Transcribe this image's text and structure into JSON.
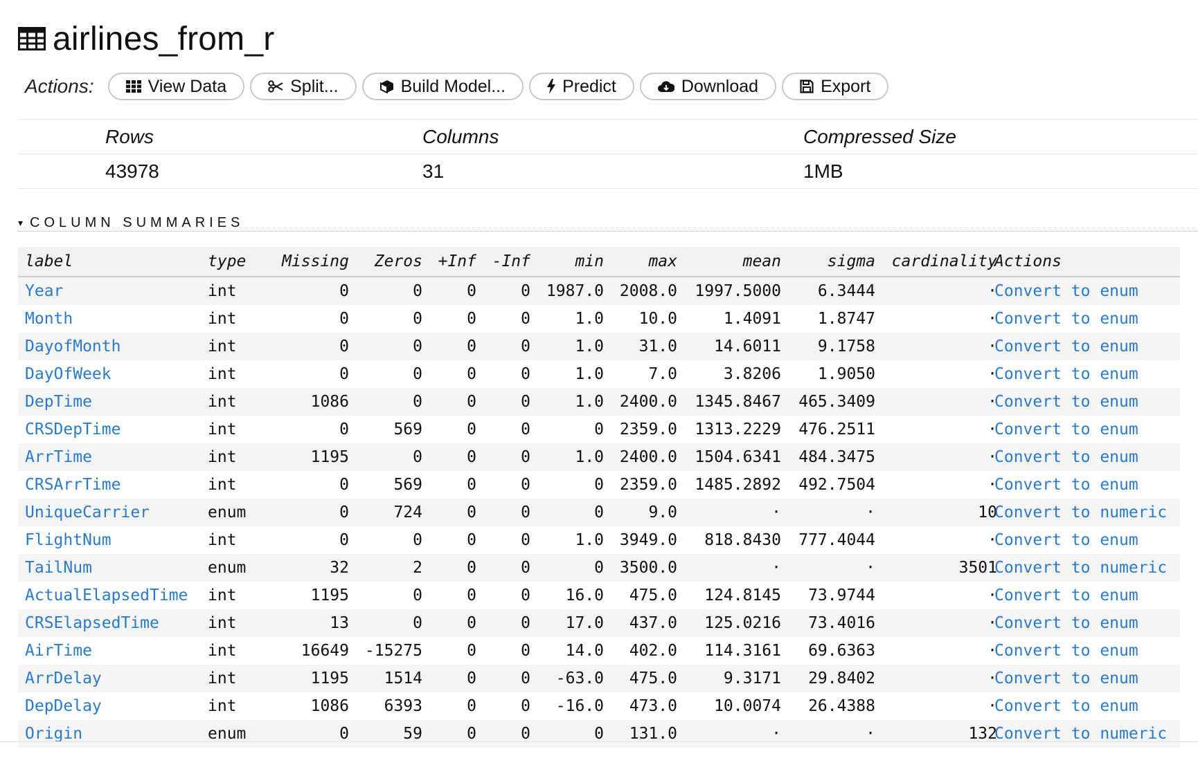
{
  "frame": {
    "name": "airlines_from_r",
    "icon": "table-icon"
  },
  "actions": {
    "label": "Actions:",
    "buttons": [
      {
        "label": "View Data",
        "icon": "grid-icon"
      },
      {
        "label": "Split...",
        "icon": "scissors-icon"
      },
      {
        "label": "Build Model...",
        "icon": "cube-icon"
      },
      {
        "label": "Predict",
        "icon": "bolt-icon"
      },
      {
        "label": "Download",
        "icon": "cloud-download-icon"
      },
      {
        "label": "Export",
        "icon": "save-icon"
      }
    ]
  },
  "summary": {
    "headers": {
      "rows": "Rows",
      "columns": "Columns",
      "size": "Compressed Size"
    },
    "values": {
      "rows": "43978",
      "columns": "31",
      "size": "1MB"
    }
  },
  "section": {
    "title": "COLUMN SUMMARIES",
    "caret": "▾"
  },
  "columns": {
    "label": "label",
    "type": "type",
    "missing": "Missing",
    "zeros": "Zeros",
    "pinf": "+Inf",
    "ninf": "-Inf",
    "min": "min",
    "max": "max",
    "mean": "mean",
    "sigma": "sigma",
    "cardinality": "cardinality",
    "actions": "Actions"
  },
  "rows": [
    {
      "label": "Year",
      "type": "int",
      "missing": "0",
      "zeros": "0",
      "pinf": "0",
      "ninf": "0",
      "min": "1987.0",
      "max": "2008.0",
      "mean": "1997.5000",
      "sigma": "6.3444",
      "cardinality": "·",
      "action": "Convert to enum"
    },
    {
      "label": "Month",
      "type": "int",
      "missing": "0",
      "zeros": "0",
      "pinf": "0",
      "ninf": "0",
      "min": "1.0",
      "max": "10.0",
      "mean": "1.4091",
      "sigma": "1.8747",
      "cardinality": "·",
      "action": "Convert to enum"
    },
    {
      "label": "DayofMonth",
      "type": "int",
      "missing": "0",
      "zeros": "0",
      "pinf": "0",
      "ninf": "0",
      "min": "1.0",
      "max": "31.0",
      "mean": "14.6011",
      "sigma": "9.1758",
      "cardinality": "·",
      "action": "Convert to enum"
    },
    {
      "label": "DayOfWeek",
      "type": "int",
      "missing": "0",
      "zeros": "0",
      "pinf": "0",
      "ninf": "0",
      "min": "1.0",
      "max": "7.0",
      "mean": "3.8206",
      "sigma": "1.9050",
      "cardinality": "·",
      "action": "Convert to enum"
    },
    {
      "label": "DepTime",
      "type": "int",
      "missing": "1086",
      "zeros": "0",
      "pinf": "0",
      "ninf": "0",
      "min": "1.0",
      "max": "2400.0",
      "mean": "1345.8467",
      "sigma": "465.3409",
      "cardinality": "·",
      "action": "Convert to enum"
    },
    {
      "label": "CRSDepTime",
      "type": "int",
      "missing": "0",
      "zeros": "569",
      "pinf": "0",
      "ninf": "0",
      "min": "0",
      "max": "2359.0",
      "mean": "1313.2229",
      "sigma": "476.2511",
      "cardinality": "·",
      "action": "Convert to enum"
    },
    {
      "label": "ArrTime",
      "type": "int",
      "missing": "1195",
      "zeros": "0",
      "pinf": "0",
      "ninf": "0",
      "min": "1.0",
      "max": "2400.0",
      "mean": "1504.6341",
      "sigma": "484.3475",
      "cardinality": "·",
      "action": "Convert to enum"
    },
    {
      "label": "CRSArrTime",
      "type": "int",
      "missing": "0",
      "zeros": "569",
      "pinf": "0",
      "ninf": "0",
      "min": "0",
      "max": "2359.0",
      "mean": "1485.2892",
      "sigma": "492.7504",
      "cardinality": "·",
      "action": "Convert to enum"
    },
    {
      "label": "UniqueCarrier",
      "type": "enum",
      "missing": "0",
      "zeros": "724",
      "pinf": "0",
      "ninf": "0",
      "min": "0",
      "max": "9.0",
      "mean": "·",
      "sigma": "·",
      "cardinality": "10",
      "action": "Convert to numeric"
    },
    {
      "label": "FlightNum",
      "type": "int",
      "missing": "0",
      "zeros": "0",
      "pinf": "0",
      "ninf": "0",
      "min": "1.0",
      "max": "3949.0",
      "mean": "818.8430",
      "sigma": "777.4044",
      "cardinality": "·",
      "action": "Convert to enum"
    },
    {
      "label": "TailNum",
      "type": "enum",
      "missing": "32",
      "zeros": "2",
      "pinf": "0",
      "ninf": "0",
      "min": "0",
      "max": "3500.0",
      "mean": "·",
      "sigma": "·",
      "cardinality": "3501",
      "action": "Convert to numeric"
    },
    {
      "label": "ActualElapsedTime",
      "type": "int",
      "missing": "1195",
      "zeros": "0",
      "pinf": "0",
      "ninf": "0",
      "min": "16.0",
      "max": "475.0",
      "mean": "124.8145",
      "sigma": "73.9744",
      "cardinality": "·",
      "action": "Convert to enum"
    },
    {
      "label": "CRSElapsedTime",
      "type": "int",
      "missing": "13",
      "zeros": "0",
      "pinf": "0",
      "ninf": "0",
      "min": "17.0",
      "max": "437.0",
      "mean": "125.0216",
      "sigma": "73.4016",
      "cardinality": "·",
      "action": "Convert to enum"
    },
    {
      "label": "AirTime",
      "type": "int",
      "missing": "16649",
      "zeros": "-15275",
      "pinf": "0",
      "ninf": "0",
      "min": "14.0",
      "max": "402.0",
      "mean": "114.3161",
      "sigma": "69.6363",
      "cardinality": "·",
      "action": "Convert to enum"
    },
    {
      "label": "ArrDelay",
      "type": "int",
      "missing": "1195",
      "zeros": "1514",
      "pinf": "0",
      "ninf": "0",
      "min": "-63.0",
      "max": "475.0",
      "mean": "9.3171",
      "sigma": "29.8402",
      "cardinality": "·",
      "action": "Convert to enum"
    },
    {
      "label": "DepDelay",
      "type": "int",
      "missing": "1086",
      "zeros": "6393",
      "pinf": "0",
      "ninf": "0",
      "min": "-16.0",
      "max": "473.0",
      "mean": "10.0074",
      "sigma": "26.4388",
      "cardinality": "·",
      "action": "Convert to enum"
    },
    {
      "label": "Origin",
      "type": "enum",
      "missing": "0",
      "zeros": "59",
      "pinf": "0",
      "ninf": "0",
      "min": "0",
      "max": "131.0",
      "mean": "·",
      "sigma": "·",
      "cardinality": "132",
      "action": "Convert to numeric"
    }
  ]
}
